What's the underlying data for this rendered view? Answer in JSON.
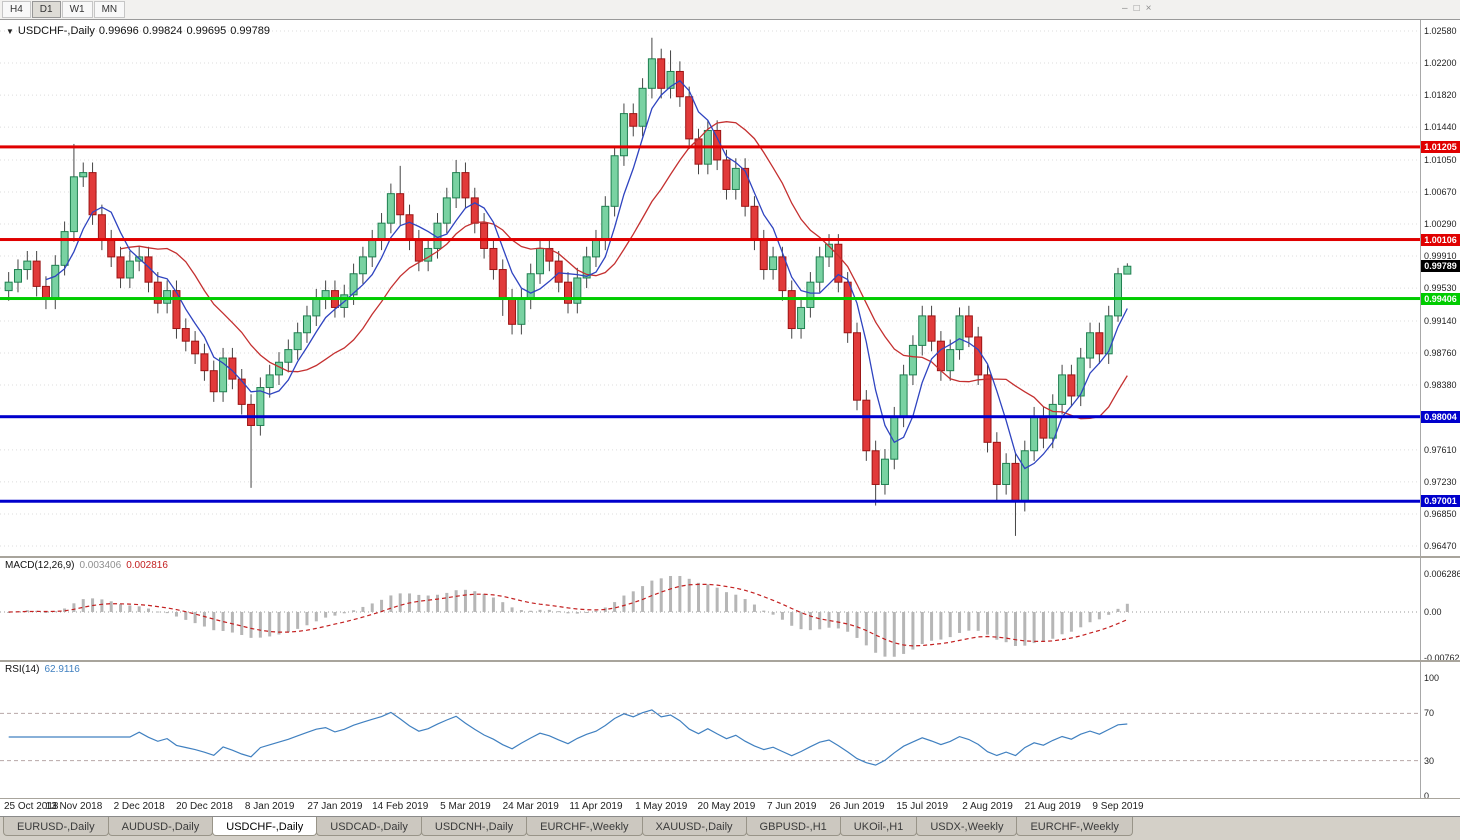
{
  "toolbar": {
    "timeframes": [
      "H4",
      "D1",
      "W1",
      "MN"
    ],
    "active_timeframe": "D1"
  },
  "window_controls": {
    "minimize": "–",
    "restore": "□",
    "close": "×"
  },
  "chart_header": {
    "dropdown_icon": "▼",
    "symbol": "USDCHF-,Daily",
    "open": "0.99696",
    "high": "0.99824",
    "low": "0.99695",
    "close": "0.99789"
  },
  "chart_data": {
    "type": "candlestick",
    "symbol": "USDCHF",
    "timeframe": "Daily",
    "x_labels": [
      "25 Oct 2018",
      "13 Nov 2018",
      "2 Dec 2018",
      "20 Dec 2018",
      "8 Jan 2019",
      "27 Jan 2019",
      "14 Feb 2019",
      "5 Mar 2019",
      "24 Mar 2019",
      "11 Apr 2019",
      "1 May 2019",
      "20 May 2019",
      "7 Jun 2019",
      "26 Jun 2019",
      "15 Jul 2019",
      "2 Aug 2019",
      "21 Aug 2019",
      "9 Sep 2019"
    ],
    "y_range": [
      0.9647,
      1.0258
    ],
    "y_tick_labels": [
      "1.02580",
      "1.02200",
      "1.01820",
      "1.01440",
      "1.01050",
      "1.00670",
      "1.00290",
      "0.99910",
      "0.99530",
      "0.99140",
      "0.98760",
      "0.98380",
      "0.98000",
      "0.97610",
      "0.97230",
      "0.96850",
      "0.96470"
    ],
    "candles": [
      [
        0.995,
        0.9972,
        0.9938,
        0.996
      ],
      [
        0.996,
        0.9987,
        0.9948,
        0.9975
      ],
      [
        0.9975,
        0.9997,
        0.9963,
        0.9985
      ],
      [
        0.9985,
        0.9997,
        0.9943,
        0.9955
      ],
      [
        0.9955,
        0.9967,
        0.9928,
        0.994
      ],
      [
        0.994,
        0.9992,
        0.9928,
        0.998
      ],
      [
        0.998,
        1.0032,
        0.9968,
        1.002
      ],
      [
        1.002,
        1.0124,
        1.0008,
        1.0085
      ],
      [
        1.0085,
        1.0102,
        1.0073,
        1.009
      ],
      [
        1.009,
        1.0102,
        1.0028,
        1.004
      ],
      [
        1.004,
        1.0052,
        0.9998,
        1.001
      ],
      [
        1.001,
        1.0022,
        0.9978,
        0.999
      ],
      [
        0.999,
        1.0002,
        0.9953,
        0.9965
      ],
      [
        0.9965,
        0.9997,
        0.9953,
        0.9985
      ],
      [
        0.9985,
        1.0002,
        0.9973,
        0.999
      ],
      [
        0.999,
        1.0002,
        0.9948,
        0.996
      ],
      [
        0.996,
        0.9972,
        0.9923,
        0.9935
      ],
      [
        0.9935,
        0.9962,
        0.9923,
        0.995
      ],
      [
        0.995,
        0.9962,
        0.9893,
        0.9905
      ],
      [
        0.9905,
        0.9917,
        0.9878,
        0.989
      ],
      [
        0.989,
        0.9902,
        0.9863,
        0.9875
      ],
      [
        0.9875,
        0.9887,
        0.9843,
        0.9855
      ],
      [
        0.9855,
        0.9867,
        0.9818,
        0.983
      ],
      [
        0.983,
        0.9882,
        0.9818,
        0.987
      ],
      [
        0.987,
        0.9882,
        0.9833,
        0.9845
      ],
      [
        0.9845,
        0.9857,
        0.9803,
        0.9815
      ],
      [
        0.9815,
        0.9827,
        0.9716,
        0.979
      ],
      [
        0.979,
        0.9847,
        0.9778,
        0.9835
      ],
      [
        0.9835,
        0.9862,
        0.9823,
        0.985
      ],
      [
        0.985,
        0.9877,
        0.9838,
        0.9865
      ],
      [
        0.9865,
        0.9892,
        0.9853,
        0.988
      ],
      [
        0.988,
        0.9912,
        0.9868,
        0.99
      ],
      [
        0.99,
        0.9932,
        0.9888,
        0.992
      ],
      [
        0.992,
        0.9952,
        0.9908,
        0.994
      ],
      [
        0.994,
        0.9962,
        0.9928,
        0.995
      ],
      [
        0.995,
        0.9962,
        0.9918,
        0.993
      ],
      [
        0.993,
        0.9957,
        0.9918,
        0.9945
      ],
      [
        0.9945,
        0.9982,
        0.9933,
        0.997
      ],
      [
        0.997,
        1.0002,
        0.9958,
        0.999
      ],
      [
        0.999,
        1.0022,
        0.9978,
        1.001
      ],
      [
        1.001,
        1.0042,
        0.9998,
        1.003
      ],
      [
        1.003,
        1.0077,
        1.0018,
        1.0065
      ],
      [
        1.0065,
        1.0098,
        1.0028,
        1.004
      ],
      [
        1.004,
        1.0052,
        0.9998,
        1.001
      ],
      [
        1.001,
        1.0022,
        0.9973,
        0.9985
      ],
      [
        0.9985,
        1.0012,
        0.9973,
        1.0
      ],
      [
        1.0,
        1.0042,
        0.9988,
        1.003
      ],
      [
        1.003,
        1.0072,
        1.0018,
        1.006
      ],
      [
        1.006,
        1.0105,
        1.0048,
        1.009
      ],
      [
        1.009,
        1.0102,
        1.0048,
        1.006
      ],
      [
        1.006,
        1.0072,
        1.0018,
        1.003
      ],
      [
        1.003,
        1.0042,
        0.9988,
        1.0
      ],
      [
        1.0,
        1.0012,
        0.9963,
        0.9975
      ],
      [
        0.9975,
        0.9987,
        0.992,
        0.994
      ],
      [
        0.994,
        0.9952,
        0.9898,
        0.991
      ],
      [
        0.991,
        0.9952,
        0.9898,
        0.994
      ],
      [
        0.994,
        0.9982,
        0.9928,
        0.997
      ],
      [
        0.997,
        1.0012,
        0.9958,
        1.0
      ],
      [
        1.0,
        1.0012,
        0.9973,
        0.9985
      ],
      [
        0.9985,
        0.9997,
        0.9948,
        0.996
      ],
      [
        0.996,
        0.9972,
        0.9923,
        0.9935
      ],
      [
        0.9935,
        0.9977,
        0.9923,
        0.9965
      ],
      [
        0.9965,
        1.0002,
        0.9953,
        0.999
      ],
      [
        0.999,
        1.0022,
        0.9978,
        1.001
      ],
      [
        1.001,
        1.0062,
        0.9998,
        1.005
      ],
      [
        1.005,
        1.0122,
        1.0038,
        1.011
      ],
      [
        1.011,
        1.0172,
        1.0098,
        1.016
      ],
      [
        1.016,
        1.0172,
        1.0133,
        1.0145
      ],
      [
        1.0145,
        1.0202,
        1.0133,
        1.019
      ],
      [
        1.019,
        1.025,
        1.0178,
        1.0225
      ],
      [
        1.0225,
        1.0237,
        1.0178,
        1.019
      ],
      [
        1.019,
        1.0235,
        1.0178,
        1.021
      ],
      [
        1.021,
        1.0222,
        1.0168,
        1.018
      ],
      [
        1.018,
        1.0192,
        1.0118,
        1.013
      ],
      [
        1.013,
        1.0142,
        1.0088,
        1.01
      ],
      [
        1.01,
        1.0152,
        1.0088,
        1.014
      ],
      [
        1.014,
        1.0152,
        1.0093,
        1.0105
      ],
      [
        1.0105,
        1.0117,
        1.0058,
        1.007
      ],
      [
        1.007,
        1.0107,
        1.0058,
        1.0095
      ],
      [
        1.0095,
        1.0107,
        1.0038,
        1.005
      ],
      [
        1.005,
        1.0062,
        0.9998,
        1.001
      ],
      [
        1.001,
        1.0022,
        0.9963,
        0.9975
      ],
      [
        0.9975,
        1.0002,
        0.9963,
        0.999
      ],
      [
        0.999,
        1.0002,
        0.9938,
        0.995
      ],
      [
        0.995,
        0.9962,
        0.9893,
        0.9905
      ],
      [
        0.9905,
        0.9942,
        0.9893,
        0.993
      ],
      [
        0.993,
        0.9972,
        0.9918,
        0.996
      ],
      [
        0.996,
        1.0002,
        0.9948,
        0.999
      ],
      [
        0.999,
        1.0017,
        0.9978,
        1.0005
      ],
      [
        1.0005,
        1.0017,
        0.9948,
        0.996
      ],
      [
        0.996,
        0.9972,
        0.9888,
        0.99
      ],
      [
        0.99,
        0.9912,
        0.9808,
        0.982
      ],
      [
        0.982,
        0.9832,
        0.9748,
        0.976
      ],
      [
        0.976,
        0.9772,
        0.9695,
        0.972
      ],
      [
        0.972,
        0.9762,
        0.9708,
        0.975
      ],
      [
        0.975,
        0.9812,
        0.9738,
        0.98
      ],
      [
        0.98,
        0.9862,
        0.9788,
        0.985
      ],
      [
        0.985,
        0.9897,
        0.9838,
        0.9885
      ],
      [
        0.9885,
        0.9932,
        0.9873,
        0.992
      ],
      [
        0.992,
        0.9932,
        0.9878,
        0.989
      ],
      [
        0.989,
        0.9902,
        0.9843,
        0.9855
      ],
      [
        0.9855,
        0.9892,
        0.9843,
        0.988
      ],
      [
        0.988,
        0.993,
        0.9868,
        0.992
      ],
      [
        0.992,
        0.9932,
        0.9883,
        0.9895
      ],
      [
        0.9895,
        0.9907,
        0.9838,
        0.985
      ],
      [
        0.985,
        0.9862,
        0.9758,
        0.977
      ],
      [
        0.977,
        0.9782,
        0.97,
        0.972
      ],
      [
        0.972,
        0.9757,
        0.9708,
        0.9745
      ],
      [
        0.9745,
        0.9757,
        0.9659,
        0.97
      ],
      [
        0.97,
        0.9772,
        0.9688,
        0.976
      ],
      [
        0.976,
        0.9812,
        0.9748,
        0.98
      ],
      [
        0.98,
        0.9812,
        0.9763,
        0.9775
      ],
      [
        0.9775,
        0.9827,
        0.9763,
        0.9815
      ],
      [
        0.9815,
        0.9862,
        0.9803,
        0.985
      ],
      [
        0.985,
        0.9862,
        0.9813,
        0.9825
      ],
      [
        0.9825,
        0.9882,
        0.9813,
        0.987
      ],
      [
        0.987,
        0.9912,
        0.9858,
        0.99
      ],
      [
        0.99,
        0.9912,
        0.9863,
        0.9875
      ],
      [
        0.9875,
        0.9932,
        0.9863,
        0.992
      ],
      [
        0.992,
        0.9977,
        0.9913,
        0.997
      ],
      [
        0.99696,
        0.99824,
        0.99695,
        0.99789
      ]
    ],
    "overlays": [
      {
        "name": "ma-fast",
        "type": "sma",
        "period": 5,
        "color": "#2f44c0"
      },
      {
        "name": "ma-slow",
        "type": "sma",
        "period": 13,
        "color": "#c43030"
      }
    ],
    "h_lines": [
      {
        "label": "1.01205",
        "value": 1.01205,
        "color": "#e00000"
      },
      {
        "label": "1.00106",
        "value": 1.00106,
        "color": "#e00000"
      },
      {
        "label": "0.99406",
        "value": 0.99406,
        "color": "#00cc00"
      },
      {
        "label": "0.98004",
        "value": 0.98004,
        "color": "#0000cc"
      },
      {
        "label": "0.97001",
        "value": 0.97001,
        "color": "#0000cc"
      }
    ],
    "current_price": {
      "label": "0.99789",
      "value": 0.99789,
      "badge_color": "#000000"
    },
    "indicators": {
      "macd": {
        "label": "MACD(12,26,9)",
        "value_main": "0.003406",
        "value_signal": "0.002816",
        "params": [
          12,
          26,
          9
        ],
        "y_axis_labels": [
          "0.006286",
          "0.00",
          "-0.00762"
        ],
        "y_axis_values": [
          0.006286,
          0,
          -0.00762
        ],
        "y_range": [
          -0.00762,
          0.006286
        ],
        "histogram_color": "#b6b6b6",
        "signal_color": "#c32020"
      },
      "rsi": {
        "label": "RSI(14)",
        "value": "62.9116",
        "period": 14,
        "levels": [
          70,
          30
        ],
        "y_axis_labels": [
          "100",
          "70",
          "30",
          "0"
        ],
        "y_axis_values": [
          100,
          70,
          30,
          0
        ],
        "y_range": [
          0,
          100
        ],
        "line_color": "#4080c0"
      }
    },
    "colors": {
      "up_fill": "#79d2a2",
      "up_border": "#1f7f50",
      "down_fill": "#e13a3a",
      "down_border": "#9c1414",
      "wick": "#444444",
      "grid": "#dcdcdc"
    }
  },
  "tabs": {
    "items": [
      {
        "label": "EURUSD-,Daily",
        "active": false
      },
      {
        "label": "AUDUSD-,Daily",
        "active": false
      },
      {
        "label": "USDCHF-,Daily",
        "active": true
      },
      {
        "label": "USDCAD-,Daily",
        "active": false
      },
      {
        "label": "USDCNH-,Daily",
        "active": false
      },
      {
        "label": "EURCHF-,Weekly",
        "active": false
      },
      {
        "label": "XAUUSD-,Daily",
        "active": false
      },
      {
        "label": "GBPUSD-,H1",
        "active": false
      },
      {
        "label": "UKOil-,H1",
        "active": false
      },
      {
        "label": "USDX-,Weekly",
        "active": false
      },
      {
        "label": "EURCHF-,Weekly",
        "active": false
      }
    ]
  }
}
